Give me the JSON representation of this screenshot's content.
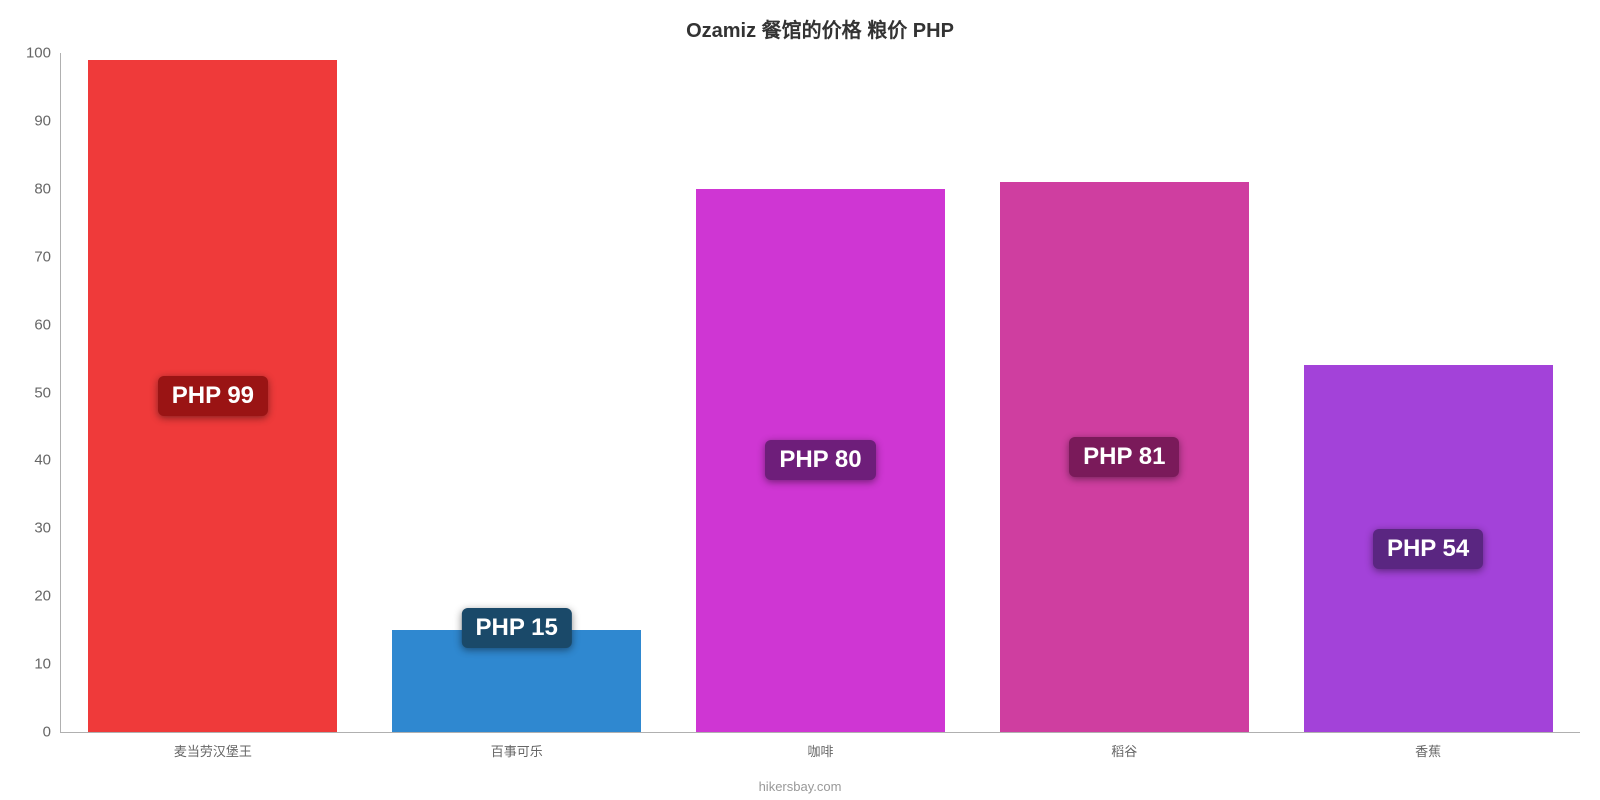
{
  "chart": {
    "type": "bar",
    "title": "Ozamiz 餐馆的价格 粮价 PHP",
    "title_fontsize": 20,
    "title_color": "#333333",
    "background_color": "#ffffff",
    "axis_color": "#b0b0b0",
    "tick_color": "#666666",
    "xlabel_fontsize": 13,
    "ylabel_fontsize": 15,
    "bar_label_fontsize": 24,
    "bar_width_ratio": 0.82,
    "ylim": [
      0,
      100
    ],
    "yticks": [
      0,
      10,
      20,
      30,
      40,
      50,
      60,
      70,
      80,
      90,
      100
    ],
    "categories": [
      "麦当劳汉堡王",
      "百事可乐",
      "咖啡",
      "稻谷",
      "香蕉"
    ],
    "values": [
      99,
      15,
      80,
      81,
      54
    ],
    "value_labels": [
      "PHP 99",
      "PHP 15",
      "PHP 80",
      "PHP 81",
      "PHP 54"
    ],
    "bar_colors": [
      "#ef3a3a",
      "#2f88d0",
      "#cf36d3",
      "#cf3ea0",
      "#a342d9"
    ],
    "label_bg_colors": [
      "#9a1414",
      "#1a4969",
      "#6e1e7a",
      "#7a1a5a",
      "#5a2681"
    ],
    "label_text_color": "#ffffff",
    "label_positions": [
      "middle",
      "top",
      "middle",
      "middle",
      "middle"
    ],
    "credit": "hikersbay.com",
    "credit_color": "#999999"
  }
}
